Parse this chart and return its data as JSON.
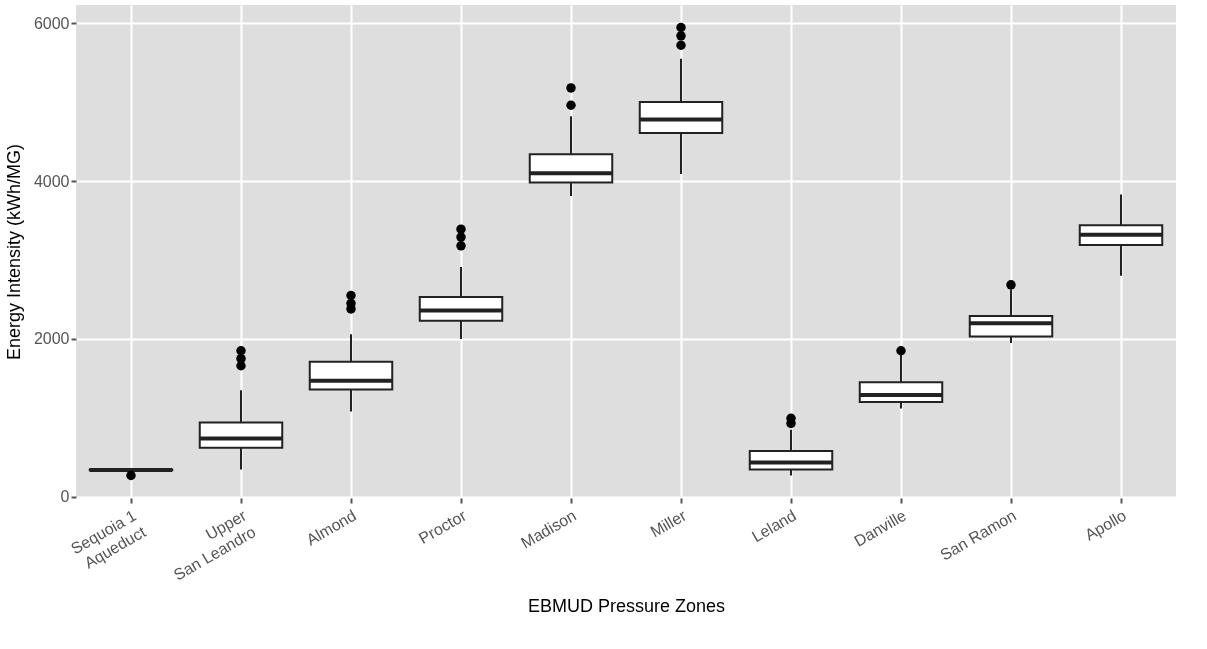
{
  "chart_data": {
    "type": "box",
    "xlabel": "EBMUD Pressure Zones",
    "ylabel": "Energy Intensity (kWh/MG)",
    "categories": [
      "Sequoia 1\nAqueduct",
      "Upper\nSan Leandro",
      "Almond",
      "Proctor",
      "Madison",
      "Miller",
      "Leland",
      "Danville",
      "San Ramon",
      "Apollo"
    ],
    "boxes": [
      {
        "low": 330,
        "q1": 335,
        "median": 340,
        "q3": 345,
        "high": 350,
        "outliers": [
          270
        ]
      },
      {
        "low": 345,
        "q1": 620,
        "median": 740,
        "q3": 940,
        "high": 1350,
        "outliers": [
          1660,
          1750,
          1850
        ]
      },
      {
        "low": 1080,
        "q1": 1360,
        "median": 1470,
        "q3": 1710,
        "high": 2060,
        "outliers": [
          2380,
          2450,
          2550
        ]
      },
      {
        "low": 2000,
        "q1": 2230,
        "median": 2360,
        "q3": 2530,
        "high": 2910,
        "outliers": [
          3180,
          3290,
          3390
        ]
      },
      {
        "low": 3810,
        "q1": 3980,
        "median": 4100,
        "q3": 4340,
        "high": 4820,
        "outliers": [
          4960,
          5180
        ]
      },
      {
        "low": 4090,
        "q1": 4610,
        "median": 4780,
        "q3": 5000,
        "high": 5550,
        "outliers": [
          5720,
          5840,
          5945
        ]
      },
      {
        "low": 270,
        "q1": 345,
        "median": 435,
        "q3": 580,
        "high": 850,
        "outliers": [
          930,
          995
        ]
      },
      {
        "low": 1120,
        "q1": 1200,
        "median": 1290,
        "q3": 1450,
        "high": 1800,
        "outliers": [
          1850
        ]
      },
      {
        "low": 1950,
        "q1": 2030,
        "median": 2200,
        "q3": 2290,
        "high": 2630,
        "outliers": [
          2685
        ]
      },
      {
        "low": 2800,
        "q1": 3190,
        "median": 3320,
        "q3": 3440,
        "high": 3830
      }
    ],
    "ylim": [
      -15,
      6230
    ],
    "yticks": [
      0,
      2000,
      4000,
      6000
    ],
    "grid": true
  }
}
